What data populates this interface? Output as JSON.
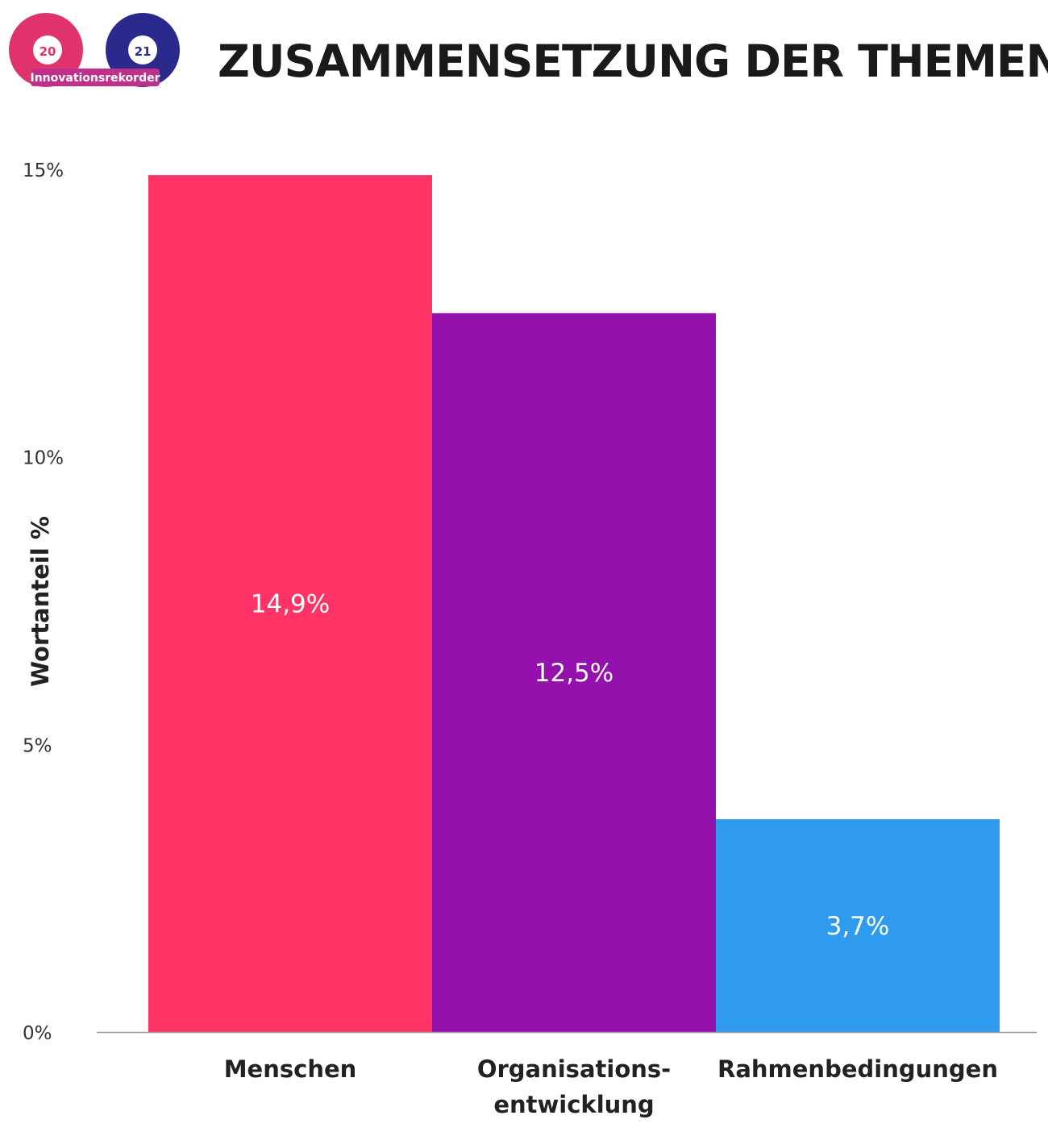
{
  "logo": {
    "left_number": "20",
    "right_number": "21",
    "text": "Innovationsrekorder"
  },
  "chart_data": {
    "type": "bar",
    "title": "ZUSAMMENSETZUNG DER THEMEN",
    "xlabel": "",
    "ylabel": "Wortanteil %",
    "categories": [
      "Menschen",
      "Organisations-\nentwicklung",
      "Rahmenbedingungen"
    ],
    "values": [
      14.9,
      12.5,
      3.7
    ],
    "data_labels": [
      "14,9%",
      "12,5%",
      "3,7%"
    ],
    "bar_colors": [
      "#ff3366",
      "#9411ad",
      "#2f9bef"
    ],
    "ylim": [
      0,
      15
    ],
    "y_ticks": [
      0,
      5,
      10,
      15
    ],
    "y_tick_labels": [
      "0%",
      "5%",
      "10%",
      "15%"
    ],
    "grid": false,
    "legend": "none"
  }
}
